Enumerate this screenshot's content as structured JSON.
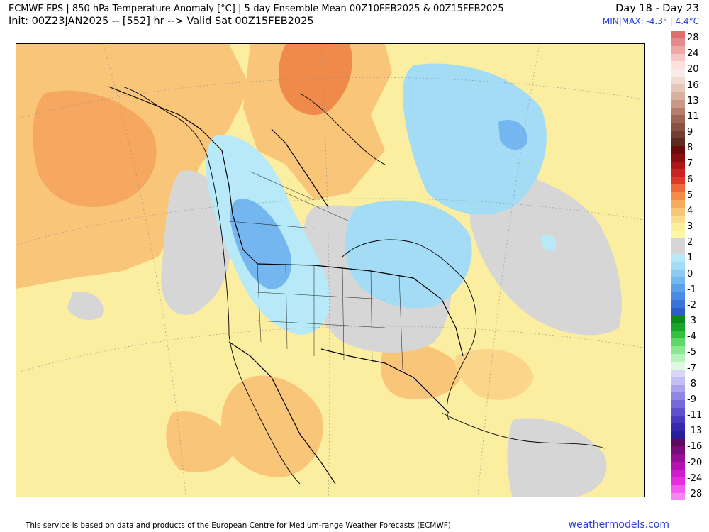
{
  "header": {
    "title": "ECMWF EPS | 850 hPa Temperature Anomaly [°C] | 5-day Ensemble Mean 00Z10FEB2025 & 00Z15FEB2025",
    "init_line": "Init: 00Z23JAN2025 -- [552] hr --> Valid Sat 00Z15FEB2025",
    "day_range": "Day 18 - Day 23",
    "minmax": "MIN|MAX: -4.3° | 4.4°C"
  },
  "colorbar": {
    "labels": [
      "28",
      "24",
      "20",
      "16",
      "13",
      "11",
      "9",
      "8",
      "7",
      "6",
      "5",
      "4",
      "3",
      "2",
      "1",
      "0",
      "-1",
      "-2",
      "-3",
      "-4",
      "-5",
      "-7",
      "-8",
      "-9",
      "-11",
      "-13",
      "-16",
      "-20",
      "-24",
      "-28"
    ],
    "colors": [
      "#de6f6f",
      "#e58a8a",
      "#eea7a7",
      "#f6c6c6",
      "#fde2dc",
      "#f8ece6",
      "#f0dcd0",
      "#e6c8bb",
      "#d9b1a1",
      "#c99786",
      "#b67d6c",
      "#a06654",
      "#8a5040",
      "#733d30",
      "#5c2a20",
      "#6a0a0a",
      "#8a0f0f",
      "#ad1616",
      "#c92222",
      "#de3a2a",
      "#ee6a3a",
      "#f48c4a",
      "#f7ab5e",
      "#f9c578",
      "#fbdb8e",
      "#fcef9c",
      "#fff6a8",
      "#d6d6d6",
      "#d6d6d6",
      "#b7e9f8",
      "#a4dcf6",
      "#8ccaf4",
      "#73b6f0",
      "#5da0ea",
      "#4a8be3",
      "#3a74d8",
      "#2b5ec9",
      "#0c8a1a",
      "#1aa52a",
      "#33c140",
      "#5fd86a",
      "#8de792",
      "#b6f3ba",
      "#dff9e1",
      "#d9d6f6",
      "#c4bff2",
      "#aaa3ec",
      "#8f86e4",
      "#756ad9",
      "#5d52cc",
      "#473cbd",
      "#3528ac",
      "#28209a",
      "#5e0a5c",
      "#7a0c78",
      "#960e94",
      "#b412b2",
      "#cf1ccd",
      "#e32fe0",
      "#f25af0",
      "#f887f2"
    ]
  },
  "footer": {
    "attribution": "This service is based on data and products of the European Centre for Medium-range Weather Forecasts (ECMWF)",
    "brand": "weathermodels.com"
  }
}
